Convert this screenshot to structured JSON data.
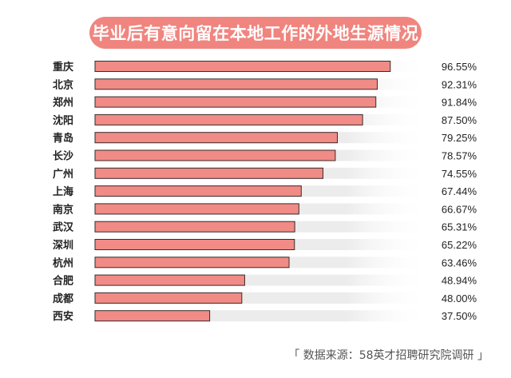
{
  "colors": {
    "bar_fill": "#f08b86",
    "bar_stroke": "#3a2b2b",
    "track": "#ececec",
    "title_bg": "#f0857f",
    "title_text": "#ffffff",
    "label_text": "#222222",
    "source_text": "#555555"
  },
  "chart_data": {
    "type": "bar",
    "orientation": "horizontal",
    "title": "毕业后有意向留在本地工作的外地生源情况",
    "categories": [
      "重庆",
      "北京",
      "郑州",
      "沈阳",
      "青岛",
      "长沙",
      "广州",
      "上海",
      "南京",
      "武汉",
      "深圳",
      "杭州",
      "合肥",
      "成都",
      "西安"
    ],
    "values": [
      96.55,
      92.31,
      91.84,
      87.5,
      79.25,
      78.57,
      74.55,
      67.44,
      66.67,
      65.31,
      65.22,
      63.46,
      48.94,
      48.0,
      37.5
    ],
    "value_labels": [
      "96.55%",
      "92.31%",
      "91.84%",
      "87.50%",
      "79.25%",
      "78.57%",
      "74.55%",
      "67.44%",
      "66.67%",
      "65.31%",
      "65.22%",
      "63.46%",
      "48.94%",
      "48.00%",
      "37.50%"
    ],
    "xlim": [
      0,
      100
    ],
    "grid": false,
    "legend": "none"
  },
  "source": "「 数据来源：58英才招聘研究院调研 」"
}
